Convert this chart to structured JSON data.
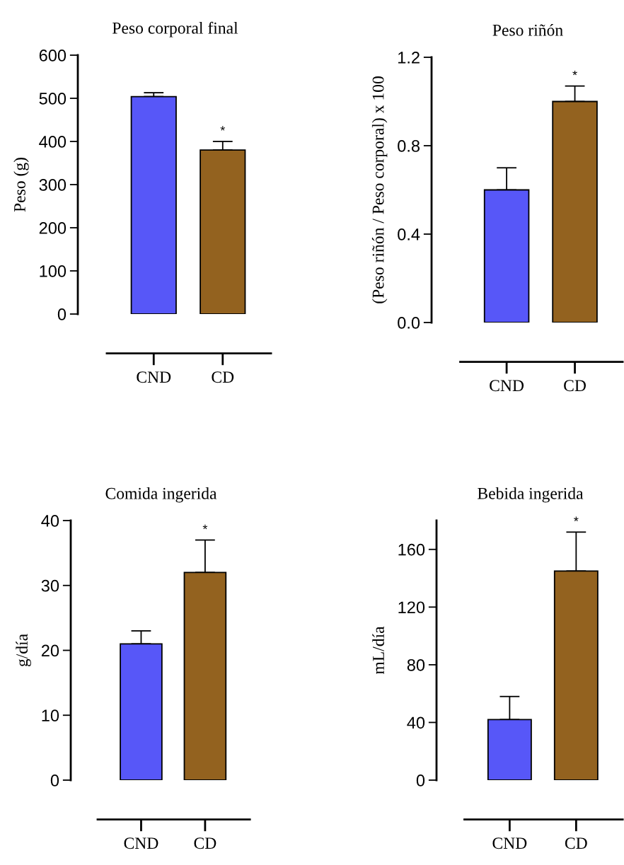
{
  "chart_data": [
    {
      "type": "bar",
      "title": "Peso corporal final",
      "ylabel": "Peso (g)",
      "categories": [
        "CND",
        "CD"
      ],
      "values": [
        504,
        380
      ],
      "errors": [
        [
          504,
          513
        ],
        [
          380,
          400
        ]
      ],
      "colors": [
        "#5757f8",
        "#93621f"
      ],
      "ylim": [
        0,
        600
      ],
      "yticks": [
        0,
        100,
        200,
        300,
        400,
        500,
        600
      ],
      "annotations": [
        "*"
      ]
    },
    {
      "type": "bar",
      "title": "Peso riñón",
      "ylabel": "(Peso riñón / Peso corporal) x 100",
      "categories": [
        "CND",
        "CD"
      ],
      "values": [
        0.6,
        1.0
      ],
      "errors": [
        [
          0.6,
          0.7
        ],
        [
          1.0,
          1.07
        ]
      ],
      "colors": [
        "#5757f8",
        "#93621f"
      ],
      "ylim": [
        0,
        1.2
      ],
      "yticks": [
        {
          "value": 0,
          "label": "0.0"
        },
        0.4,
        0.8,
        1.2
      ],
      "annotations": [
        "*"
      ]
    },
    {
      "type": "bar",
      "title": "Comida ingerida",
      "ylabel": "g/día",
      "categories": [
        "CND",
        "CD"
      ],
      "values": [
        21,
        32
      ],
      "errors": [
        [
          21,
          23
        ],
        [
          32,
          37
        ]
      ],
      "colors": [
        "#5757f8",
        "#93621f"
      ],
      "ylim": [
        0,
        40
      ],
      "yticks": [
        0,
        10,
        20,
        30,
        40
      ],
      "annotations": [
        "*"
      ]
    },
    {
      "type": "bar",
      "title": "Bebida ingerida",
      "ylabel": "mL/día",
      "categories": [
        "CND",
        "CD"
      ],
      "values": [
        42,
        145
      ],
      "errors": [
        [
          42,
          58
        ],
        [
          145,
          172
        ]
      ],
      "colors": [
        "#5757f8",
        "#93621f"
      ],
      "ylim": [
        0,
        180
      ],
      "yticks": [
        0,
        40,
        80,
        120,
        160
      ],
      "annotations": [
        "*"
      ]
    }
  ]
}
